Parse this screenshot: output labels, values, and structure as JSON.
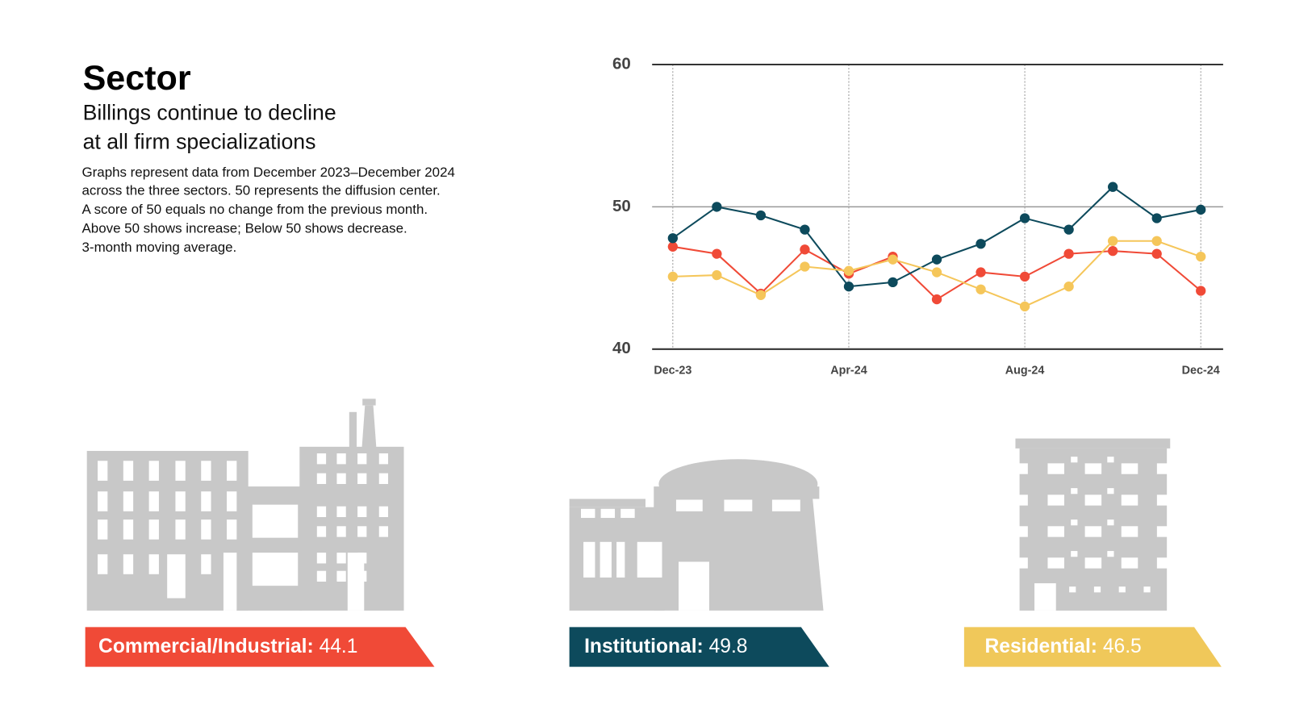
{
  "header": {
    "title": "Sector",
    "subtitle": [
      "Billings continue to decline",
      "at all firm specializations"
    ],
    "description": [
      "Graphs represent data from December 2023–December 2024",
      "across the three sectors. 50 represents the diffusion center.",
      "A score of 50 equals no change from the previous month.",
      "Above 50 shows increase; Below 50 shows decrease.",
      "3-month moving average."
    ]
  },
  "chart_data": {
    "type": "line",
    "categories": [
      "Dec-23",
      null,
      null,
      null,
      "Apr-24",
      null,
      null,
      null,
      "Aug-24",
      null,
      null,
      null,
      "Dec-24"
    ],
    "series": [
      {
        "name": "Commercial/Industrial:",
        "color": "#f04a37",
        "values": [
          47.2,
          46.7,
          43.9,
          47.0,
          45.3,
          46.5,
          43.5,
          45.4,
          45.1,
          46.7,
          46.9,
          46.7,
          44.1
        ]
      },
      {
        "name": "Institutional:",
        "color": "#0d4a5c",
        "values": [
          47.8,
          50.0,
          49.4,
          48.4,
          44.4,
          44.7,
          46.3,
          47.4,
          49.2,
          48.4,
          51.4,
          49.2,
          49.8
        ]
      },
      {
        "name": "Residential:",
        "color": "#f5c65a",
        "values": [
          45.1,
          45.2,
          43.8,
          45.8,
          45.5,
          46.3,
          45.4,
          44.2,
          43.0,
          44.4,
          47.6,
          47.6,
          46.5
        ]
      }
    ],
    "ylim": [
      40,
      60
    ],
    "yticks": [
      40,
      50,
      60
    ],
    "grid": true
  }
}
